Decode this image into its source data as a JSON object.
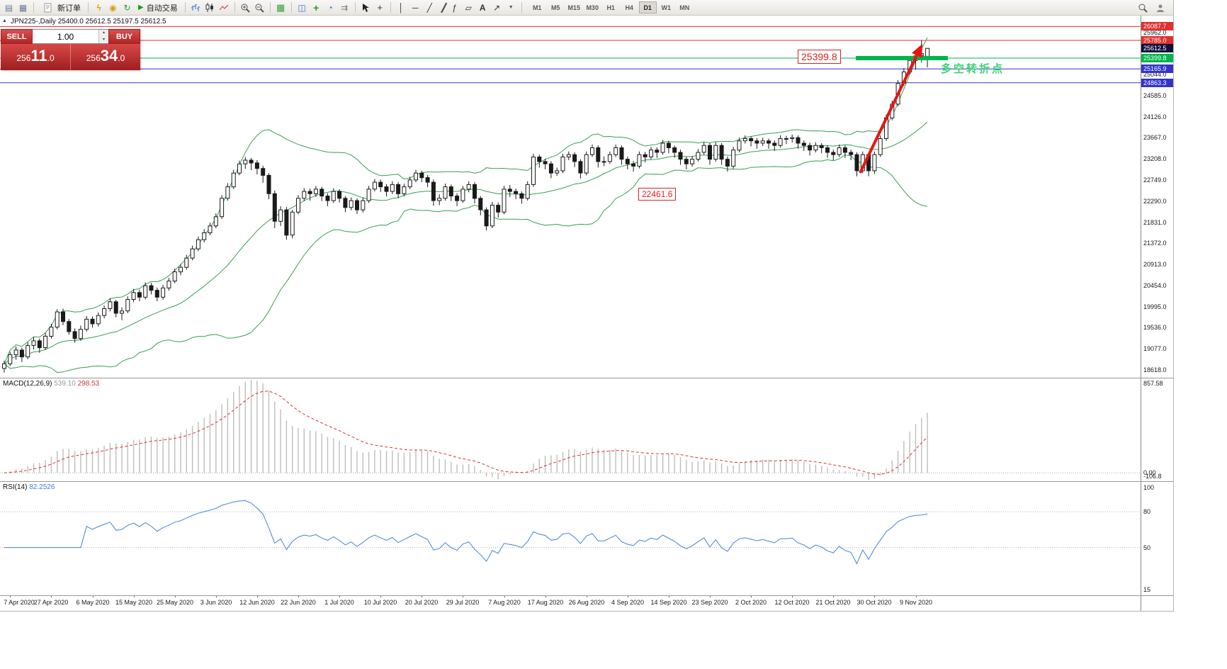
{
  "toolbar": {
    "new_order_label": "新订单",
    "autotrade_label": "自动交易",
    "timeframes": [
      "M1",
      "M5",
      "M15",
      "M30",
      "H1",
      "H4",
      "D1",
      "W1",
      "MN"
    ],
    "active_timeframe": "D1"
  },
  "one_click": {
    "sell_label": "SELL",
    "buy_label": "BUY",
    "volume": "1.00",
    "sell_price": {
      "pre": "256",
      "big": "11",
      "suf": ".0"
    },
    "buy_price": {
      "pre": "256",
      "big": "34",
      "suf": ".0"
    }
  },
  "chart": {
    "ohlc_line": "JPN225-,Daily  25400.0 25612.5 25197.5 25612.5"
  },
  "indicators": {
    "macd": {
      "label": "MACD(12,26,9)",
      "main_value": "539.10",
      "signal_value": "298.53",
      "axis_ticks": [
        "857.58",
        "0.00",
        "-106.8"
      ]
    },
    "rsi": {
      "label": "RSI(14)",
      "value": "82.2526",
      "axis_ticks": [
        100,
        80,
        50,
        15
      ],
      "levels": [
        80,
        50
      ]
    }
  },
  "annotations": {
    "level_price_label": "25399.8",
    "mid_price_label": "22461.6",
    "note_text": "多空转折点"
  },
  "colors": {
    "candle_outline": "#1a1a1a",
    "bollinger": "#35a055",
    "level_red": "#e03030",
    "level_green": "#00b44c",
    "level_blue": "#3333cc",
    "price_line_dark": "#10103a",
    "macd_hist": "#bdbdbd",
    "macd_signal": "#e03030",
    "rsi_line": "#4285d6",
    "trade_red": "#c62f2f",
    "arrow_red": "#e81414",
    "note_green": "#3ed078",
    "annotation_red": "#e02020"
  },
  "chart_data": {
    "type": "candlestick",
    "title": "JPN225-,Daily",
    "support_price": 25399.8,
    "x_labels": [
      "7 Apr 2020",
      "27 Apr 2020",
      "6 May 2020",
      "15 May 2020",
      "25 May 2020",
      "3 Jun 2020",
      "12 Jun 2020",
      "22 Jun 2020",
      "1 Jul 2020",
      "10 Jul 2020",
      "20 Jul 2020",
      "29 Jul 2020",
      "7 Aug 2020",
      "17 Aug 2020",
      "26 Aug 2020",
      "4 Sep 2020",
      "14 Sep 2020",
      "23 Sep 2020",
      "2 Oct 2020",
      "12 Oct 2020",
      "21 Oct 2020",
      "30 Oct 2020",
      "9 Nov 2020"
    ],
    "y_axis": {
      "ticks": [
        25962.0,
        25044.0,
        24585.0,
        24126.0,
        23667.0,
        23208.0,
        22749.0,
        22290.0,
        21831.0,
        21372.0,
        20913.0,
        20454.0,
        19995.0,
        19536.0,
        19077.0,
        18618.0
      ],
      "price_labels": [
        {
          "text": "26087.7",
          "value": 26087.7,
          "style": "red",
          "line": true
        },
        {
          "text": "25785.0",
          "value": 25785.0,
          "style": "red",
          "line": true
        },
        {
          "text": "25612.5",
          "value": 25612.5,
          "style": "dark",
          "line": false
        },
        {
          "text": "25399.8",
          "value": 25399.8,
          "style": "green",
          "line": true
        },
        {
          "text": "25165.9",
          "value": 25165.9,
          "style": "blue",
          "line": true
        },
        {
          "text": "24863.3",
          "value": 24863.3,
          "style": "blue",
          "line": true
        }
      ]
    },
    "overlays": {
      "bollinger_period": 20,
      "bollinger_dev": 2
    },
    "macd_params": [
      12,
      26,
      9
    ],
    "rsi_period": 14,
    "candles": [
      [
        18650,
        18820,
        18560,
        18750
      ],
      [
        18750,
        19010,
        18700,
        18950
      ],
      [
        18950,
        19130,
        18840,
        19050
      ],
      [
        19050,
        19100,
        18790,
        18900
      ],
      [
        18900,
        19220,
        18850,
        19150
      ],
      [
        19150,
        19330,
        19060,
        19250
      ],
      [
        19250,
        19300,
        18990,
        19100
      ],
      [
        19100,
        19420,
        19050,
        19350
      ],
      [
        19350,
        19620,
        19300,
        19550
      ],
      [
        19550,
        19940,
        19500,
        19880
      ],
      [
        19880,
        19950,
        19590,
        19670
      ],
      [
        19670,
        19720,
        19380,
        19450
      ],
      [
        19450,
        19520,
        19210,
        19300
      ],
      [
        19300,
        19580,
        19250,
        19500
      ],
      [
        19500,
        19790,
        19450,
        19720
      ],
      [
        19720,
        19780,
        19540,
        19620
      ],
      [
        19620,
        19870,
        19560,
        19800
      ],
      [
        19800,
        20020,
        19740,
        19950
      ],
      [
        19950,
        20180,
        19890,
        20100
      ],
      [
        20100,
        20140,
        19760,
        19850
      ],
      [
        19850,
        19980,
        19700,
        19900
      ],
      [
        19900,
        20220,
        19850,
        20150
      ],
      [
        20150,
        20380,
        20090,
        20300
      ],
      [
        20300,
        20360,
        20110,
        20200
      ],
      [
        20200,
        20520,
        20150,
        20450
      ],
      [
        20450,
        20510,
        20260,
        20350
      ],
      [
        20350,
        20410,
        20110,
        20200
      ],
      [
        20200,
        20470,
        20140,
        20400
      ],
      [
        20400,
        20620,
        20340,
        20550
      ],
      [
        20550,
        20820,
        20500,
        20750
      ],
      [
        20750,
        20920,
        20680,
        20850
      ],
      [
        20850,
        21120,
        20800,
        21050
      ],
      [
        21050,
        21320,
        21000,
        21250
      ],
      [
        21250,
        21520,
        21200,
        21450
      ],
      [
        21450,
        21680,
        21390,
        21600
      ],
      [
        21600,
        21820,
        21550,
        21750
      ],
      [
        21750,
        22020,
        21700,
        21950
      ],
      [
        21950,
        22420,
        21900,
        22350
      ],
      [
        22350,
        22680,
        22300,
        22600
      ],
      [
        22600,
        22970,
        22550,
        22900
      ],
      [
        22900,
        23170,
        22850,
        23100
      ],
      [
        23100,
        23250,
        22990,
        23180
      ],
      [
        23180,
        23230,
        22960,
        23120
      ],
      [
        23120,
        23180,
        22870,
        23000
      ],
      [
        23000,
        23060,
        22690,
        22850
      ],
      [
        22850,
        22900,
        22330,
        22450
      ],
      [
        22450,
        22520,
        21700,
        21850
      ],
      [
        21850,
        22180,
        21750,
        22100
      ],
      [
        22100,
        22160,
        21450,
        21550
      ],
      [
        21550,
        22100,
        21480,
        22050
      ],
      [
        22050,
        22420,
        22000,
        22350
      ],
      [
        22350,
        22570,
        22290,
        22500
      ],
      [
        22500,
        22560,
        22300,
        22450
      ],
      [
        22450,
        22620,
        22380,
        22550
      ],
      [
        22550,
        22600,
        22290,
        22400
      ],
      [
        22400,
        22460,
        22180,
        22300
      ],
      [
        22300,
        22570,
        22250,
        22500
      ],
      [
        22500,
        22550,
        22260,
        22350
      ],
      [
        22350,
        22400,
        22050,
        22150
      ],
      [
        22150,
        22370,
        22090,
        22300
      ],
      [
        22300,
        22350,
        22010,
        22100
      ],
      [
        22100,
        22370,
        22040,
        22300
      ],
      [
        22300,
        22620,
        22250,
        22550
      ],
      [
        22550,
        22770,
        22500,
        22700
      ],
      [
        22700,
        22760,
        22490,
        22600
      ],
      [
        22600,
        22660,
        22390,
        22500
      ],
      [
        22500,
        22720,
        22440,
        22650
      ],
      [
        22650,
        22700,
        22350,
        22450
      ],
      [
        22450,
        22670,
        22390,
        22600
      ],
      [
        22600,
        22820,
        22550,
        22750
      ],
      [
        22750,
        22970,
        22700,
        22900
      ],
      [
        22900,
        22950,
        22700,
        22800
      ],
      [
        22800,
        22860,
        22590,
        22700
      ],
      [
        22700,
        22760,
        22190,
        22300
      ],
      [
        22300,
        22440,
        22200,
        22350
      ],
      [
        22350,
        22670,
        22300,
        22600
      ],
      [
        22600,
        22650,
        22290,
        22400
      ],
      [
        22400,
        22460,
        22180,
        22300
      ],
      [
        22300,
        22620,
        22250,
        22550
      ],
      [
        22550,
        22720,
        22480,
        22650
      ],
      [
        22650,
        22700,
        22240,
        22350
      ],
      [
        22350,
        22400,
        21980,
        22100
      ],
      [
        22100,
        22150,
        21650,
        21750
      ],
      [
        21750,
        22270,
        21700,
        22200
      ],
      [
        22200,
        22260,
        21930,
        22050
      ],
      [
        22050,
        22620,
        22000,
        22550
      ],
      [
        22550,
        22640,
        22380,
        22500
      ],
      [
        22500,
        22560,
        22330,
        22450
      ],
      [
        22450,
        22500,
        22230,
        22350
      ],
      [
        22350,
        22720,
        22300,
        22650
      ],
      [
        22650,
        23320,
        22600,
        23250
      ],
      [
        23250,
        23300,
        23020,
        23150
      ],
      [
        23150,
        23210,
        22980,
        23100
      ],
      [
        23100,
        23160,
        22790,
        22900
      ],
      [
        22900,
        23020,
        22840,
        22950
      ],
      [
        22950,
        23320,
        22900,
        23250
      ],
      [
        23250,
        23370,
        23180,
        23300
      ],
      [
        23300,
        23350,
        23030,
        23150
      ],
      [
        23150,
        23200,
        22780,
        22900
      ],
      [
        22900,
        23370,
        22850,
        23300
      ],
      [
        23300,
        23520,
        23250,
        23450
      ],
      [
        23450,
        23500,
        23020,
        23150
      ],
      [
        23150,
        23260,
        23050,
        23150
      ],
      [
        23150,
        23370,
        23100,
        23300
      ],
      [
        23300,
        23520,
        23250,
        23450
      ],
      [
        23450,
        23500,
        23080,
        23200
      ],
      [
        23200,
        23260,
        22980,
        23100
      ],
      [
        23100,
        23160,
        22930,
        23050
      ],
      [
        23050,
        23370,
        23000,
        23300
      ],
      [
        23300,
        23360,
        23130,
        23250
      ],
      [
        23250,
        23470,
        23200,
        23400
      ],
      [
        23400,
        23460,
        23230,
        23350
      ],
      [
        23350,
        23620,
        23300,
        23550
      ],
      [
        23550,
        23600,
        23330,
        23450
      ],
      [
        23450,
        23500,
        23230,
        23350
      ],
      [
        23350,
        23410,
        23080,
        23200
      ],
      [
        23200,
        23260,
        22980,
        23100
      ],
      [
        23100,
        23270,
        23040,
        23200
      ],
      [
        23200,
        23420,
        23150,
        23350
      ],
      [
        23350,
        23570,
        23300,
        23500
      ],
      [
        23500,
        23550,
        23080,
        23200
      ],
      [
        23200,
        23570,
        23150,
        23500
      ],
      [
        23500,
        23550,
        23080,
        23200
      ],
      [
        23200,
        23260,
        22930,
        23050
      ],
      [
        23050,
        23470,
        23000,
        23400
      ],
      [
        23400,
        23670,
        23350,
        23600
      ],
      [
        23600,
        23720,
        23540,
        23650
      ],
      [
        23650,
        23700,
        23480,
        23600
      ],
      [
        23600,
        23660,
        23430,
        23550
      ],
      [
        23550,
        23670,
        23490,
        23600
      ],
      [
        23600,
        23650,
        23430,
        23550
      ],
      [
        23550,
        23610,
        23380,
        23500
      ],
      [
        23500,
        23720,
        23450,
        23650
      ],
      [
        23650,
        23710,
        23530,
        23650
      ],
      [
        23650,
        23740,
        23560,
        23670
      ],
      [
        23670,
        23720,
        23430,
        23550
      ],
      [
        23550,
        23610,
        23380,
        23500
      ],
      [
        23500,
        23560,
        23280,
        23400
      ],
      [
        23400,
        23570,
        23350,
        23500
      ],
      [
        23500,
        23550,
        23330,
        23450
      ],
      [
        23450,
        23500,
        23230,
        23350
      ],
      [
        23350,
        23410,
        23180,
        23300
      ],
      [
        23300,
        23520,
        23250,
        23450
      ],
      [
        23450,
        23500,
        23230,
        23350
      ],
      [
        23350,
        23410,
        23180,
        23300
      ],
      [
        23300,
        23350,
        22830,
        22950
      ],
      [
        22950,
        23370,
        22900,
        23300
      ],
      [
        23300,
        23330,
        22830,
        22950
      ],
      [
        22950,
        23370,
        22880,
        23300
      ],
      [
        23300,
        23720,
        23250,
        23650
      ],
      [
        23650,
        24170,
        23600,
        24100
      ],
      [
        24100,
        24470,
        24050,
        24400
      ],
      [
        24400,
        24920,
        24350,
        24850
      ],
      [
        24850,
        25180,
        24800,
        25100
      ],
      [
        25100,
        25420,
        25050,
        25350
      ],
      [
        25350,
        25560,
        25150,
        25450
      ],
      [
        25450,
        25785,
        25300,
        25500
      ],
      [
        25400,
        25612.5,
        25197.5,
        25612.5
      ]
    ]
  }
}
